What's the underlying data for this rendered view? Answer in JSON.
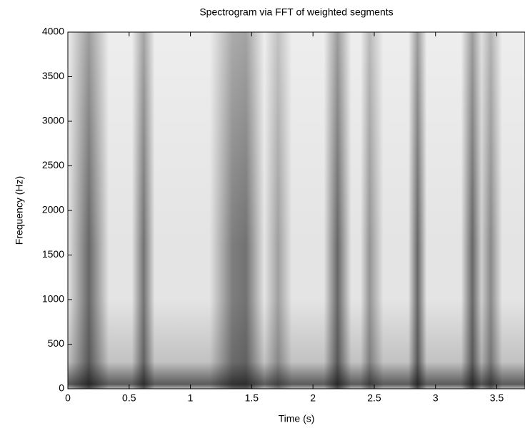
{
  "chart_data": {
    "type": "spectrogram",
    "title": "Spectrogram via FFT of weighted segments",
    "x_label": "Time (s)",
    "y_label": "Frequency (Hz)",
    "xlim": [
      0,
      3.73
    ],
    "xticks": [
      0,
      0.5,
      1,
      1.5,
      2,
      2.5,
      3,
      3.5
    ],
    "ylim": [
      0,
      4000
    ],
    "yticks": [
      0,
      500,
      1000,
      1500,
      2000,
      2500,
      3000,
      3500,
      4000
    ],
    "grid": false,
    "colormap": "gray"
  }
}
